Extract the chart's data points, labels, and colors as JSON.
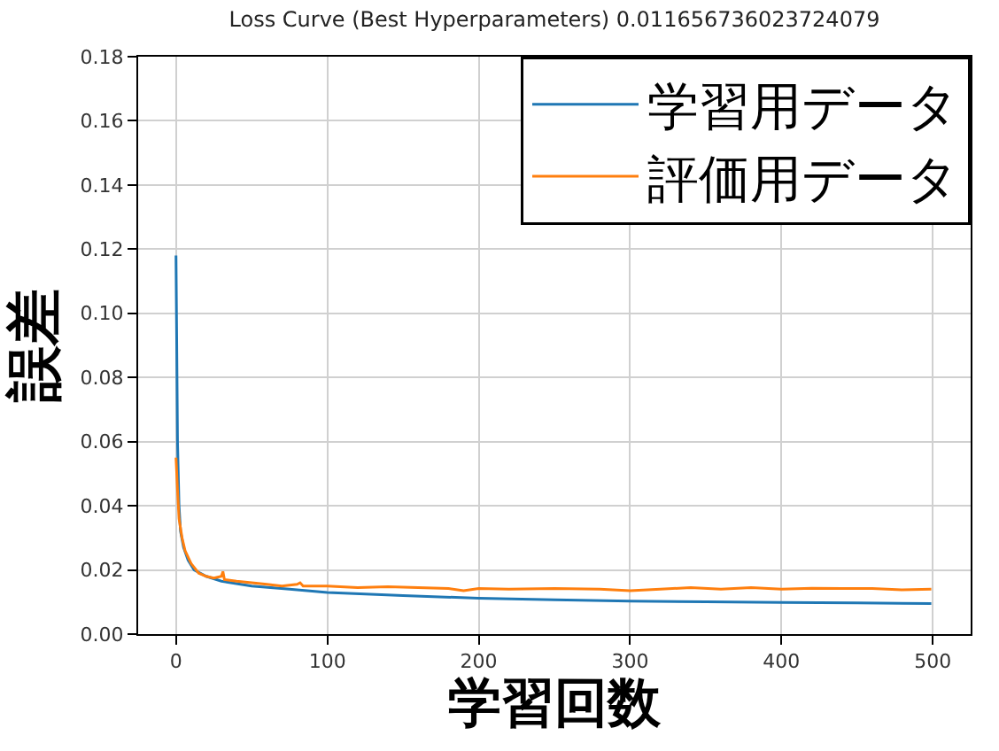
{
  "chart_data": {
    "type": "line",
    "title": "Loss Curve (Best Hyperparameters) 0.011656736023724079",
    "xlabel": "学習回数",
    "ylabel": "誤差",
    "xlim": [
      -25,
      525
    ],
    "xticks": [
      0,
      100,
      200,
      300,
      400,
      500
    ],
    "ylim": [
      0,
      0.18
    ],
    "yticks": [
      {
        "value": 0,
        "label": "0.00"
      },
      0.02,
      0.04,
      0.06,
      0.08,
      {
        "value": 0.1,
        "label": "0.10"
      },
      0.12,
      0.14,
      0.16,
      0.18
    ],
    "grid": true,
    "legend": "top right",
    "marker": "none",
    "line_style": "solid",
    "series": [
      {
        "name": "学習用データ",
        "color": "#1f77b4",
        "x": [
          0,
          1,
          2,
          3,
          5,
          8,
          12,
          20,
          30,
          50,
          75,
          100,
          150,
          200,
          250,
          300,
          350,
          400,
          450,
          499
        ],
        "values": [
          0.118,
          0.06,
          0.04,
          0.032,
          0.027,
          0.023,
          0.02,
          0.018,
          0.0165,
          0.015,
          0.014,
          0.013,
          0.012,
          0.0112,
          0.0107,
          0.0103,
          0.0101,
          0.0099,
          0.0097,
          0.0095
        ]
      },
      {
        "name": "評価用データ",
        "color": "#ff7f0e",
        "x": [
          0,
          1,
          2,
          4,
          6,
          10,
          15,
          20,
          25,
          30,
          31,
          32,
          40,
          50,
          60,
          70,
          80,
          82,
          84,
          100,
          120,
          140,
          160,
          180,
          190,
          200,
          220,
          250,
          280,
          300,
          320,
          340,
          360,
          380,
          400,
          420,
          440,
          460,
          480,
          499
        ],
        "values": [
          0.055,
          0.045,
          0.036,
          0.03,
          0.026,
          0.022,
          0.019,
          0.018,
          0.0175,
          0.018,
          0.0195,
          0.017,
          0.0165,
          0.016,
          0.0155,
          0.015,
          0.0155,
          0.016,
          0.015,
          0.015,
          0.0145,
          0.0148,
          0.0145,
          0.0142,
          0.0135,
          0.0142,
          0.014,
          0.0142,
          0.014,
          0.0135,
          0.014,
          0.0145,
          0.014,
          0.0145,
          0.014,
          0.0143,
          0.0142,
          0.0142,
          0.0138,
          0.014
        ]
      }
    ]
  }
}
